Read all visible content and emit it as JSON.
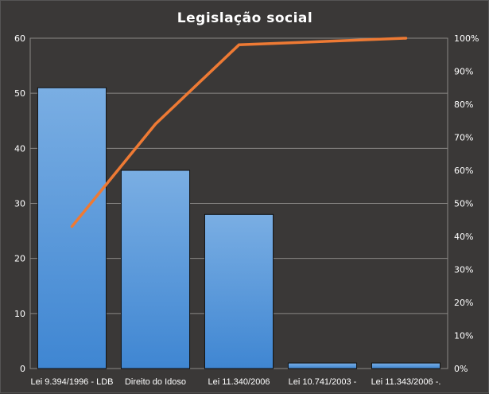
{
  "chart_data": {
    "type": "bar",
    "title": "Legislação  social",
    "categories": [
      "Lei 9.394/1996 - LDB",
      "Direito do Idoso",
      "Lei 11.340/2006",
      "Lei 10.741/2003 -",
      "Lei 11.343/2006 -."
    ],
    "series": [
      {
        "type": "bar",
        "axis": "left",
        "values": [
          51,
          36,
          28,
          1,
          1
        ]
      },
      {
        "type": "line",
        "axis": "right",
        "values": [
          43,
          74,
          98,
          99,
          100
        ]
      }
    ],
    "ylim": [
      0,
      60
    ],
    "yticks": [
      "0",
      "10",
      "20",
      "30",
      "40",
      "50",
      "60"
    ],
    "y2lim": [
      0,
      100
    ],
    "y2ticks": [
      "0%",
      "10%",
      "20%",
      "30%",
      "40%",
      "50%",
      "60%",
      "70%",
      "80%",
      "90%",
      "100%"
    ],
    "grid": true,
    "colors": {
      "background": "#3a3837",
      "bar_top": "#7aaee3",
      "bar_bottom": "#3f86d2",
      "line": "#ee7a34",
      "grid": "#8a8886",
      "text": "#ffffff"
    }
  }
}
